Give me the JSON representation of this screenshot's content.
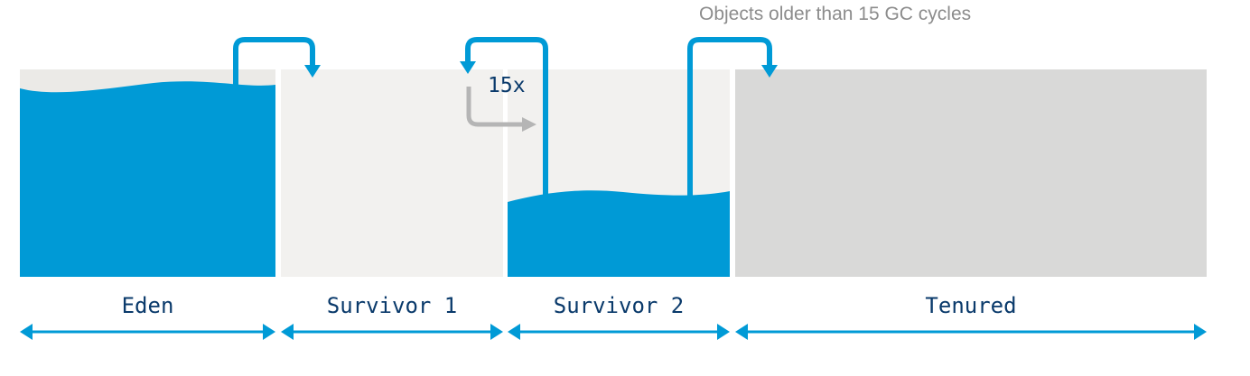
{
  "caption": "Objects older than 15 GC cycles",
  "promotion_count": "15x",
  "regions": [
    {
      "name": "Eden",
      "fill": "#009ad6",
      "background": "#ebeae7"
    },
    {
      "name": "Survivor 1",
      "fill": null,
      "background": "#f2f1ef"
    },
    {
      "name": "Survivor 2",
      "fill": "#009ad6",
      "background": "#f2f1ef"
    },
    {
      "name": "Tenured",
      "fill": null,
      "background": "#d9d9d8"
    }
  ],
  "colors": {
    "accent": "#009ad6",
    "arrow_gray": "#b5b5b5",
    "label_text": "#0a3a6b",
    "caption_text": "#8c8c8c"
  }
}
